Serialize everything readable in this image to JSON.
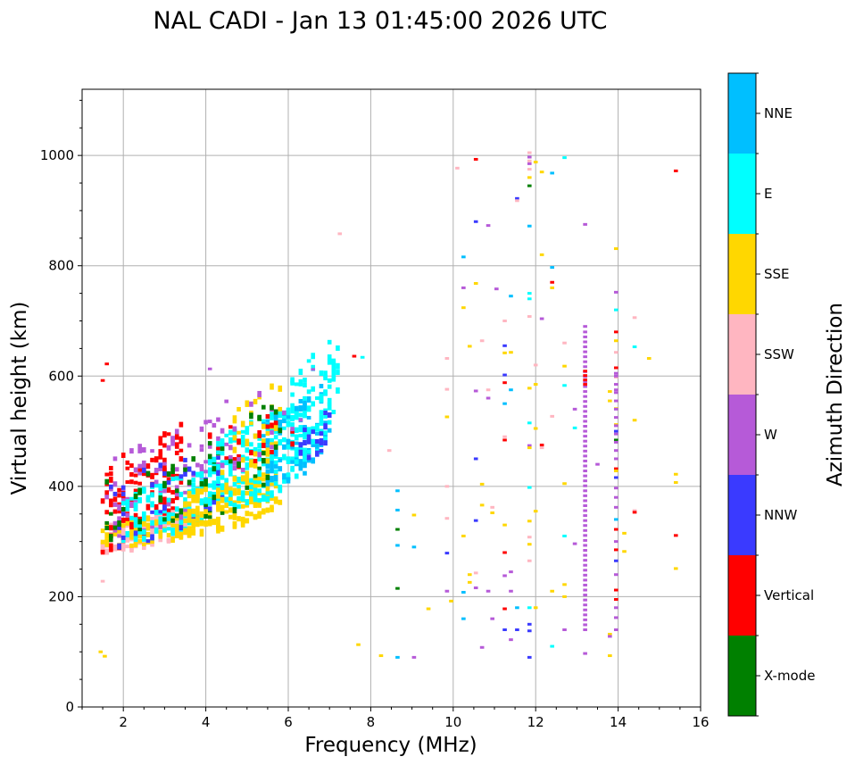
{
  "chart_data": {
    "type": "scatter",
    "title": "NAL CADI - Jan 13 01:45:00 2026 UTC",
    "xlabel": "Frequency (MHz)",
    "ylabel": "Virtual height (km)",
    "xlim": [
      1,
      16
    ],
    "ylim": [
      0,
      1120
    ],
    "xticks": [
      2,
      4,
      6,
      8,
      10,
      12,
      14,
      16
    ],
    "xtick_labels": [
      "2",
      "4",
      "6",
      "8",
      "10",
      "12",
      "14",
      "16"
    ],
    "yticks": [
      0,
      200,
      400,
      600,
      800,
      1000
    ],
    "ytick_labels": [
      "0",
      "200",
      "400",
      "600",
      "800",
      "1000"
    ],
    "grid": true,
    "colorbar": {
      "label": "Azimuth Direction",
      "categories": [
        {
          "name": "X-mode",
          "color": "#008000"
        },
        {
          "name": "Vertical",
          "color": "#ff0000"
        },
        {
          "name": "NNW",
          "color": "#3a3aff"
        },
        {
          "name": "W",
          "color": "#b65ad8"
        },
        {
          "name": "SSW",
          "color": "#ffb6c1"
        },
        {
          "name": "SSE",
          "color": "#ffd700"
        },
        {
          "name": "E",
          "color": "#00ffff"
        },
        {
          "name": "NNE",
          "color": "#00bfff"
        }
      ]
    },
    "clusters": [
      {
        "category": "SSW",
        "f": [
          1.5,
          3.6
        ],
        "h": [
          280,
          360
        ],
        "n": 130
      },
      {
        "category": "SSE",
        "f": [
          1.5,
          3.8
        ],
        "h": [
          285,
          355
        ],
        "n": 80
      },
      {
        "category": "Vertical",
        "f": [
          1.5,
          3.5
        ],
        "h": [
          280,
          520
        ],
        "n": 110
      },
      {
        "category": "W",
        "f": [
          1.6,
          4.5
        ],
        "h": [
          300,
          540
        ],
        "n": 90
      },
      {
        "category": "E",
        "f": [
          2.0,
          4.5
        ],
        "h": [
          300,
          440
        ],
        "n": 130
      },
      {
        "category": "NNW",
        "f": [
          1.6,
          4.5
        ],
        "h": [
          290,
          480
        ],
        "n": 40
      },
      {
        "category": "X-mode",
        "f": [
          1.5,
          4.5
        ],
        "h": [
          290,
          470
        ],
        "n": 40
      },
      {
        "category": "SSE",
        "f": [
          3.5,
          5.8
        ],
        "h": [
          310,
          430
        ],
        "n": 180
      },
      {
        "category": "E",
        "f": [
          4.0,
          6.5
        ],
        "h": [
          340,
          560
        ],
        "n": 200
      },
      {
        "category": "NNE",
        "f": [
          5.4,
          7.0
        ],
        "h": [
          390,
          590
        ],
        "n": 90
      },
      {
        "category": "E",
        "f": [
          6.0,
          7.2
        ],
        "h": [
          420,
          680
        ],
        "n": 90
      },
      {
        "category": "NNW",
        "f": [
          6.3,
          7.0
        ],
        "h": [
          440,
          540
        ],
        "n": 20
      },
      {
        "category": "SSE",
        "f": [
          4.4,
          5.8
        ],
        "h": [
          380,
          600
        ],
        "n": 50
      },
      {
        "category": "Vertical",
        "f": [
          4.0,
          6.2
        ],
        "h": [
          400,
          560
        ],
        "n": 25
      },
      {
        "category": "W",
        "f": [
          4.3,
          6.3
        ],
        "h": [
          420,
          620
        ],
        "n": 20
      },
      {
        "category": "X-mode",
        "f": [
          4.0,
          5.8
        ],
        "h": [
          340,
          560
        ],
        "n": 25
      }
    ],
    "points": [
      {
        "category": "Vertical",
        "f": 1.5,
        "h": 592
      },
      {
        "category": "Vertical",
        "f": 1.6,
        "h": 622
      },
      {
        "category": "SSW",
        "f": 1.5,
        "h": 228
      },
      {
        "category": "SSE",
        "f": 1.45,
        "h": 100
      },
      {
        "category": "SSE",
        "f": 1.55,
        "h": 92
      },
      {
        "category": "W",
        "f": 4.1,
        "h": 613
      },
      {
        "category": "W",
        "f": 6.6,
        "h": 612
      },
      {
        "category": "SSW",
        "f": 7.25,
        "h": 858
      },
      {
        "category": "Vertical",
        "f": 7.6,
        "h": 636
      },
      {
        "category": "E",
        "f": 7.8,
        "h": 634
      },
      {
        "category": "SSE",
        "f": 7.7,
        "h": 113
      },
      {
        "category": "SSE",
        "f": 8.25,
        "h": 93
      },
      {
        "category": "NNE",
        "f": 8.65,
        "h": 90
      },
      {
        "category": "W",
        "f": 9.05,
        "h": 90
      },
      {
        "category": "SSW",
        "f": 8.45,
        "h": 465
      },
      {
        "category": "NNE",
        "f": 8.65,
        "h": 392
      },
      {
        "category": "NNE",
        "f": 8.65,
        "h": 357
      },
      {
        "category": "X-mode",
        "f": 8.65,
        "h": 322
      },
      {
        "category": "NNE",
        "f": 8.65,
        "h": 293
      },
      {
        "category": "X-mode",
        "f": 8.65,
        "h": 215
      },
      {
        "category": "SSE",
        "f": 9.05,
        "h": 348
      },
      {
        "category": "NNE",
        "f": 9.05,
        "h": 290
      },
      {
        "category": "SSE",
        "f": 9.4,
        "h": 178
      },
      {
        "category": "SSW",
        "f": 9.85,
        "h": 632
      },
      {
        "category": "SSW",
        "f": 9.85,
        "h": 576
      },
      {
        "category": "SSE",
        "f": 9.85,
        "h": 526
      },
      {
        "category": "SSW",
        "f": 9.85,
        "h": 400
      },
      {
        "category": "SSW",
        "f": 9.85,
        "h": 342
      },
      {
        "category": "NNW",
        "f": 9.85,
        "h": 279
      },
      {
        "category": "W",
        "f": 9.85,
        "h": 210
      },
      {
        "category": "SSE",
        "f": 9.95,
        "h": 192
      },
      {
        "category": "SSW",
        "f": 10.1,
        "h": 977
      },
      {
        "category": "NNE",
        "f": 10.25,
        "h": 816
      },
      {
        "category": "W",
        "f": 10.25,
        "h": 760
      },
      {
        "category": "SSE",
        "f": 10.25,
        "h": 724
      },
      {
        "category": "SSE",
        "f": 10.25,
        "h": 310
      },
      {
        "category": "NNE",
        "f": 10.25,
        "h": 208
      },
      {
        "category": "NNE",
        "f": 10.25,
        "h": 160
      },
      {
        "category": "SSE",
        "f": 10.4,
        "h": 654
      },
      {
        "category": "SSE",
        "f": 10.4,
        "h": 240
      },
      {
        "category": "SSE",
        "f": 10.4,
        "h": 226
      },
      {
        "category": "Vertical",
        "f": 10.55,
        "h": 993
      },
      {
        "category": "NNW",
        "f": 10.55,
        "h": 880
      },
      {
        "category": "SSE",
        "f": 10.55,
        "h": 768
      },
      {
        "category": "W",
        "f": 10.55,
        "h": 573
      },
      {
        "category": "NNW",
        "f": 10.55,
        "h": 450
      },
      {
        "category": "NNW",
        "f": 10.55,
        "h": 338
      },
      {
        "category": "SSW",
        "f": 10.55,
        "h": 243
      },
      {
        "category": "W",
        "f": 10.55,
        "h": 216
      },
      {
        "category": "W",
        "f": 10.7,
        "h": 108
      },
      {
        "category": "SSW",
        "f": 10.7,
        "h": 664
      },
      {
        "category": "SSE",
        "f": 10.7,
        "h": 404
      },
      {
        "category": "SSE",
        "f": 10.7,
        "h": 366
      },
      {
        "category": "W",
        "f": 10.85,
        "h": 873
      },
      {
        "category": "SSW",
        "f": 10.85,
        "h": 575
      },
      {
        "category": "W",
        "f": 10.85,
        "h": 560
      },
      {
        "category": "SSW",
        "f": 10.95,
        "h": 362
      },
      {
        "category": "SSE",
        "f": 10.95,
        "h": 352
      },
      {
        "category": "W",
        "f": 10.85,
        "h": 210
      },
      {
        "category": "W",
        "f": 10.95,
        "h": 160
      },
      {
        "category": "W",
        "f": 11.05,
        "h": 758
      },
      {
        "category": "NNW",
        "f": 11.25,
        "h": 655
      },
      {
        "category": "NNW",
        "f": 11.25,
        "h": 602
      },
      {
        "category": "Vertical",
        "f": 11.25,
        "h": 588
      },
      {
        "category": "NNE",
        "f": 11.25,
        "h": 550
      },
      {
        "category": "SSW",
        "f": 11.25,
        "h": 490
      },
      {
        "category": "Vertical",
        "f": 11.25,
        "h": 484
      },
      {
        "category": "SSE",
        "f": 11.25,
        "h": 330
      },
      {
        "category": "Vertical",
        "f": 11.25,
        "h": 280
      },
      {
        "category": "W",
        "f": 11.25,
        "h": 238
      },
      {
        "category": "Vertical",
        "f": 11.25,
        "h": 178
      },
      {
        "category": "NNW",
        "f": 11.25,
        "h": 140
      },
      {
        "category": "SSW",
        "f": 11.25,
        "h": 700
      },
      {
        "category": "SSE",
        "f": 11.25,
        "h": 642
      },
      {
        "category": "NNE",
        "f": 11.4,
        "h": 745
      },
      {
        "category": "SSE",
        "f": 11.4,
        "h": 643
      },
      {
        "category": "NNE",
        "f": 11.4,
        "h": 575
      },
      {
        "category": "W",
        "f": 11.4,
        "h": 245
      },
      {
        "category": "W",
        "f": 11.4,
        "h": 210
      },
      {
        "category": "W",
        "f": 11.4,
        "h": 122
      },
      {
        "category": "NNW",
        "f": 11.55,
        "h": 922
      },
      {
        "category": "SSW",
        "f": 11.55,
        "h": 918
      },
      {
        "category": "NNE",
        "f": 11.55,
        "h": 180
      },
      {
        "category": "NNW",
        "f": 11.55,
        "h": 140
      },
      {
        "category": "SSW",
        "f": 11.85,
        "h": 1005
      },
      {
        "category": "W",
        "f": 11.85,
        "h": 997
      },
      {
        "category": "SSW",
        "f": 11.85,
        "h": 990
      },
      {
        "category": "W",
        "f": 11.85,
        "h": 985
      },
      {
        "category": "SSW",
        "f": 11.85,
        "h": 975
      },
      {
        "category": "SSE",
        "f": 11.85,
        "h": 960
      },
      {
        "category": "X-mode",
        "f": 11.85,
        "h": 945
      },
      {
        "category": "NNE",
        "f": 11.85,
        "h": 872
      },
      {
        "category": "E",
        "f": 11.85,
        "h": 750
      },
      {
        "category": "E",
        "f": 11.85,
        "h": 740
      },
      {
        "category": "SSW",
        "f": 11.85,
        "h": 708
      },
      {
        "category": "SSE",
        "f": 11.85,
        "h": 578
      },
      {
        "category": "E",
        "f": 11.85,
        "h": 515
      },
      {
        "category": "W",
        "f": 11.85,
        "h": 474
      },
      {
        "category": "SSE",
        "f": 11.85,
        "h": 470
      },
      {
        "category": "E",
        "f": 11.85,
        "h": 398
      },
      {
        "category": "SSE",
        "f": 11.85,
        "h": 337
      },
      {
        "category": "SSW",
        "f": 11.85,
        "h": 308
      },
      {
        "category": "SSE",
        "f": 11.85,
        "h": 295
      },
      {
        "category": "SSW",
        "f": 11.85,
        "h": 265
      },
      {
        "category": "E",
        "f": 11.85,
        "h": 180
      },
      {
        "category": "NNW",
        "f": 11.85,
        "h": 150
      },
      {
        "category": "NNW",
        "f": 11.85,
        "h": 138
      },
      {
        "category": "NNW",
        "f": 11.85,
        "h": 90
      },
      {
        "category": "SSE",
        "f": 12.0,
        "h": 988
      },
      {
        "category": "SSW",
        "f": 12.0,
        "h": 620
      },
      {
        "category": "SSE",
        "f": 12.0,
        "h": 585
      },
      {
        "category": "SSE",
        "f": 12.0,
        "h": 505
      },
      {
        "category": "SSE",
        "f": 12.0,
        "h": 355
      },
      {
        "category": "SSE",
        "f": 12.0,
        "h": 180
      },
      {
        "category": "SSE",
        "f": 12.15,
        "h": 970
      },
      {
        "category": "SSE",
        "f": 12.15,
        "h": 820
      },
      {
        "category": "W",
        "f": 12.15,
        "h": 704
      },
      {
        "category": "Vertical",
        "f": 12.15,
        "h": 475
      },
      {
        "category": "SSW",
        "f": 12.15,
        "h": 470
      },
      {
        "category": "NNE",
        "f": 12.4,
        "h": 968
      },
      {
        "category": "NNE",
        "f": 12.4,
        "h": 797
      },
      {
        "category": "Vertical",
        "f": 12.4,
        "h": 770
      },
      {
        "category": "SSE",
        "f": 12.4,
        "h": 760
      },
      {
        "category": "SSW",
        "f": 12.4,
        "h": 527
      },
      {
        "category": "SSE",
        "f": 12.4,
        "h": 210
      },
      {
        "category": "E",
        "f": 12.4,
        "h": 110
      },
      {
        "category": "E",
        "f": 12.7,
        "h": 996
      },
      {
        "category": "SSW",
        "f": 12.7,
        "h": 660
      },
      {
        "category": "SSE",
        "f": 12.7,
        "h": 618
      },
      {
        "category": "E",
        "f": 12.7,
        "h": 583
      },
      {
        "category": "SSE",
        "f": 12.7,
        "h": 405
      },
      {
        "category": "E",
        "f": 12.7,
        "h": 310
      },
      {
        "category": "SSE",
        "f": 12.7,
        "h": 222
      },
      {
        "category": "SSE",
        "f": 12.7,
        "h": 200
      },
      {
        "category": "W",
        "f": 12.7,
        "h": 140
      },
      {
        "category": "E",
        "f": 12.95,
        "h": 506
      },
      {
        "category": "W",
        "f": 12.95,
        "h": 540
      },
      {
        "category": "W",
        "f": 12.95,
        "h": 296
      },
      {
        "category": "W",
        "f": 13.2,
        "h": 875
      },
      {
        "category": "W",
        "f": 13.2,
        "h": 690
      },
      {
        "category": "W",
        "f": 13.2,
        "h": 97
      },
      {
        "category": "W",
        "f": 13.5,
        "h": 440
      },
      {
        "category": "SSE",
        "f": 13.8,
        "h": 572
      },
      {
        "category": "SSE",
        "f": 13.8,
        "h": 555
      },
      {
        "category": "SSE",
        "f": 13.8,
        "h": 132
      },
      {
        "category": "SSE",
        "f": 13.8,
        "h": 93
      },
      {
        "category": "W",
        "f": 13.8,
        "h": 128
      },
      {
        "category": "SSE",
        "f": 13.95,
        "h": 831
      },
      {
        "category": "W",
        "f": 13.95,
        "h": 752
      },
      {
        "category": "E",
        "f": 13.95,
        "h": 720
      },
      {
        "category": "Vertical",
        "f": 13.95,
        "h": 680
      },
      {
        "category": "SSE",
        "f": 13.95,
        "h": 664
      },
      {
        "category": "SSW",
        "f": 13.95,
        "h": 643
      },
      {
        "category": "Vertical",
        "f": 13.95,
        "h": 615
      },
      {
        "category": "W",
        "f": 13.95,
        "h": 605
      },
      {
        "category": "SSW",
        "f": 13.95,
        "h": 598
      },
      {
        "category": "W",
        "f": 13.95,
        "h": 575
      },
      {
        "category": "SSE",
        "f": 13.95,
        "h": 541
      },
      {
        "category": "SSE",
        "f": 13.95,
        "h": 512
      },
      {
        "category": "NNW",
        "f": 13.95,
        "h": 500
      },
      {
        "category": "X-mode",
        "f": 13.95,
        "h": 484
      },
      {
        "category": "Vertical",
        "f": 13.95,
        "h": 432
      },
      {
        "category": "SSE",
        "f": 13.95,
        "h": 428
      },
      {
        "category": "NNW",
        "f": 13.95,
        "h": 416
      },
      {
        "category": "W",
        "f": 13.95,
        "h": 397
      },
      {
        "category": "W",
        "f": 13.95,
        "h": 380
      },
      {
        "category": "W",
        "f": 13.95,
        "h": 362
      },
      {
        "category": "NNE",
        "f": 13.95,
        "h": 340
      },
      {
        "category": "Vertical",
        "f": 13.95,
        "h": 322
      },
      {
        "category": "W",
        "f": 13.95,
        "h": 300
      },
      {
        "category": "Vertical",
        "f": 13.95,
        "h": 285
      },
      {
        "category": "NNW",
        "f": 13.95,
        "h": 265
      },
      {
        "category": "W",
        "f": 13.95,
        "h": 240
      },
      {
        "category": "Vertical",
        "f": 13.95,
        "h": 212
      },
      {
        "category": "Vertical",
        "f": 13.95,
        "h": 195
      },
      {
        "category": "W",
        "f": 13.95,
        "h": 180
      },
      {
        "category": "W",
        "f": 13.95,
        "h": 162
      },
      {
        "category": "W",
        "f": 13.95,
        "h": 140
      },
      {
        "category": "SSE",
        "f": 14.15,
        "h": 282
      },
      {
        "category": "SSE",
        "f": 14.15,
        "h": 315
      },
      {
        "category": "SSW",
        "f": 14.4,
        "h": 706
      },
      {
        "category": "E",
        "f": 14.4,
        "h": 653
      },
      {
        "category": "SSE",
        "f": 14.4,
        "h": 520
      },
      {
        "category": "SSW",
        "f": 14.4,
        "h": 356
      },
      {
        "category": "Vertical",
        "f": 14.4,
        "h": 353
      },
      {
        "category": "SSE",
        "f": 14.75,
        "h": 632
      },
      {
        "category": "Vertical",
        "f": 15.4,
        "h": 972
      },
      {
        "category": "SSE",
        "f": 15.4,
        "h": 422
      },
      {
        "category": "SSE",
        "f": 15.4,
        "h": 407
      },
      {
        "category": "Vertical",
        "f": 15.4,
        "h": 311
      },
      {
        "category": "SSE",
        "f": 15.4,
        "h": 251
      }
    ],
    "ladders": [
      {
        "category": "W",
        "f": 13.2,
        "h_start": 140,
        "h_end": 680,
        "step": 9
      },
      {
        "category": "Vertical",
        "f": 13.2,
        "h_start": 585,
        "h_end": 610,
        "step": 8
      },
      {
        "category": "W",
        "f": 13.95,
        "h_start": 450,
        "h_end": 600,
        "step": 15
      }
    ]
  }
}
